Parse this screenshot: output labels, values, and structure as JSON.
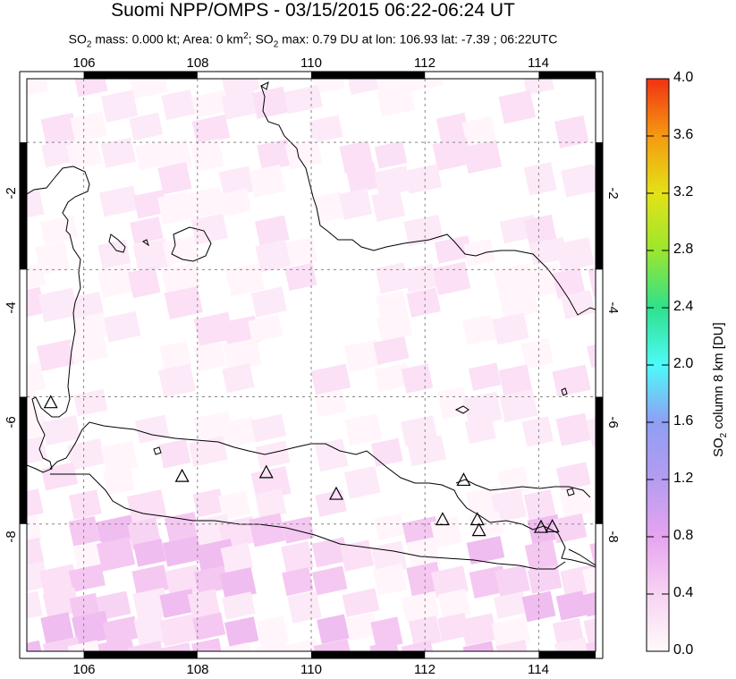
{
  "title": "Suomi NPP/OMPS - 03/15/2015 06:22-06:24 UT",
  "subtitle": {
    "p1": "SO",
    "sub1": "2",
    "p2": " mass: 0.000 kt; Area: 0 km",
    "sup1": "2",
    "p3": "; SO",
    "sub2": "2",
    "p4": " max: 0.79 DU at lon: 106.93 lat: -7.39 ; 06:22UTC"
  },
  "map": {
    "lon_ticks": [
      "106",
      "108",
      "110",
      "112",
      "114"
    ],
    "lat_ticks": [
      "-2",
      "-4",
      "-6",
      "-8"
    ],
    "lon_range": [
      105,
      115
    ],
    "lat_range": [
      -10,
      -1
    ],
    "volcano_count": 10
  },
  "colorbar": {
    "title_p1": "SO",
    "title_sub": "2",
    "title_p2": " column 8 km [DU]",
    "ticks": [
      "4.0",
      "3.6",
      "3.2",
      "2.8",
      "2.4",
      "2.0",
      "1.6",
      "1.2",
      "0.8",
      "0.4",
      "0.0"
    ],
    "colors": [
      "#fffafa",
      "#f7d3f3",
      "#e6a4f0",
      "#b59cf0",
      "#8f9ef5",
      "#4dfaf8",
      "#2fe18c",
      "#9be62e",
      "#e4e217",
      "#f59a10",
      "#f03212"
    ]
  }
}
